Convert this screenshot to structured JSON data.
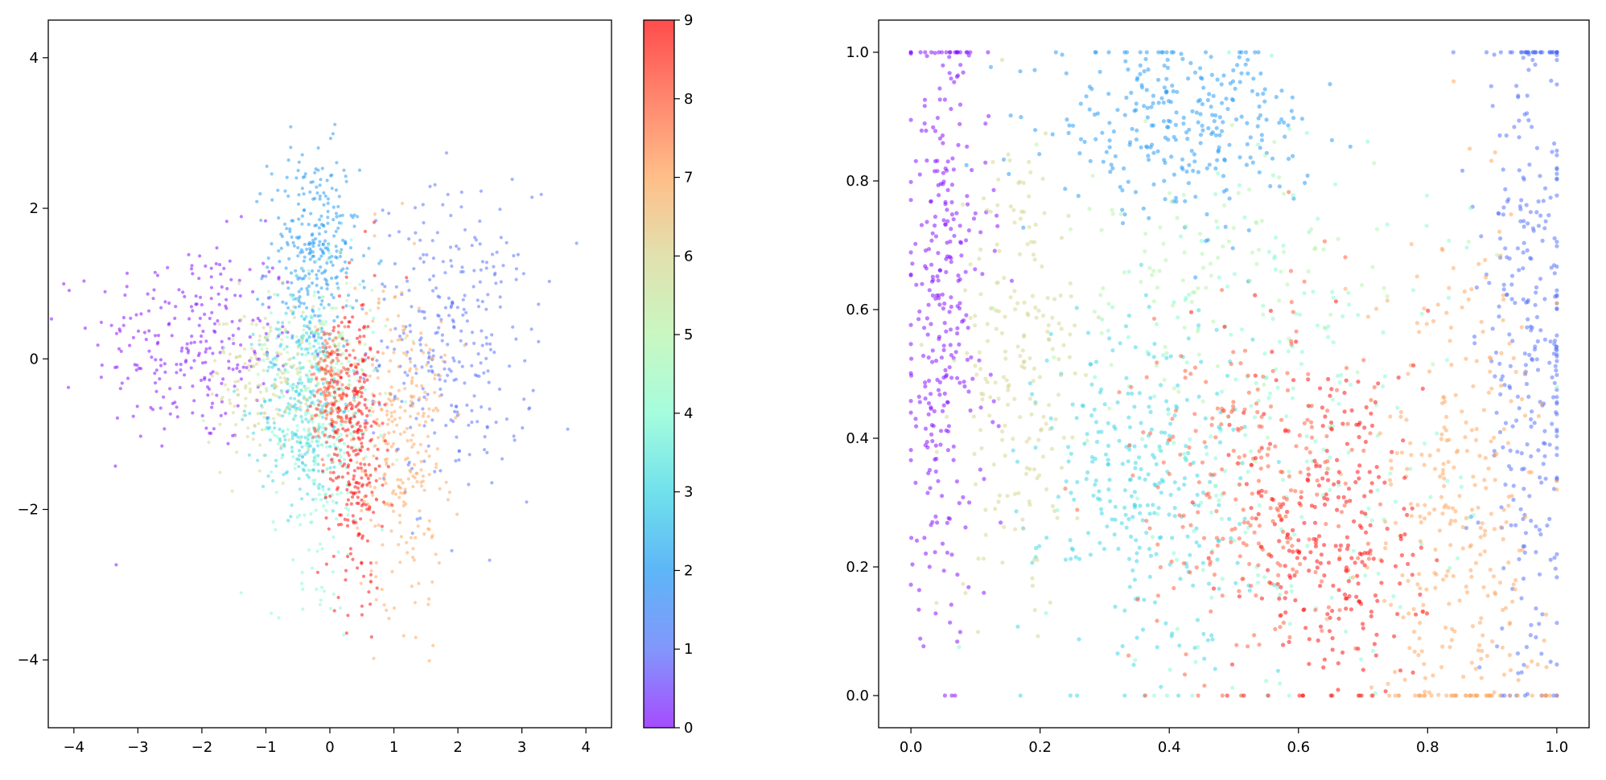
{
  "chart_data": [
    {
      "type": "scatter",
      "title": "",
      "xlabel": "",
      "ylabel": "",
      "xlim": [
        -4.4,
        4.4
      ],
      "ylim": [
        -4.9,
        4.5
      ],
      "xticks": [
        -4,
        -3,
        -2,
        -1,
        0,
        1,
        2,
        3,
        4
      ],
      "yticks": [
        -4,
        -2,
        0,
        2,
        4
      ],
      "grid": false,
      "point_alpha": 0.5,
      "color_by": "class label 0-9 (rainbow colormap)",
      "clusters": [
        {
          "label": 0,
          "color": "#8000ff",
          "center": [
            -2.1,
            0.2
          ],
          "spread": [
            0.8,
            0.7
          ],
          "n": 260
        },
        {
          "label": 1,
          "color": "#4c6afa",
          "center": [
            1.9,
            0.2
          ],
          "spread": [
            0.65,
            1.0
          ],
          "n": 300
        },
        {
          "label": 2,
          "color": "#1996f3",
          "center": [
            -0.25,
            1.4
          ],
          "spread": [
            0.35,
            0.7
          ],
          "n": 300
        },
        {
          "label": 3,
          "color": "#33d4e3",
          "center": [
            -0.4,
            -0.6
          ],
          "spread": [
            0.35,
            0.7
          ],
          "n": 300
        },
        {
          "label": 4,
          "color": "#7ffccf",
          "center": [
            -0.1,
            -1.0
          ],
          "spread": [
            0.4,
            1.0
          ],
          "n": 230
        },
        {
          "label": 5,
          "color": "#b2f3a6",
          "center": [
            -0.2,
            0.1
          ],
          "spread": [
            0.6,
            0.5
          ],
          "n": 120
        },
        {
          "label": 6,
          "color": "#d4d48c",
          "center": [
            -1.0,
            -0.3
          ],
          "spread": [
            0.45,
            0.55
          ],
          "n": 150
        },
        {
          "label": 7,
          "color": "#ffa256",
          "center": [
            1.1,
            -1.1
          ],
          "spread": [
            0.35,
            1.1
          ],
          "n": 280
        },
        {
          "label": 8,
          "color": "#ff5330",
          "center": [
            0.0,
            -0.35
          ],
          "spread": [
            0.15,
            0.4
          ],
          "n": 160
        },
        {
          "label": 9,
          "color": "#ff0000",
          "center": [
            0.4,
            -1.1
          ],
          "spread": [
            0.22,
            1.0
          ],
          "n": 290
        }
      ],
      "colorbar": {
        "min": 0,
        "max": 9,
        "ticks": [
          0,
          1,
          2,
          3,
          4,
          5,
          6,
          7,
          8,
          9
        ],
        "colormap": "rainbow",
        "stops": [
          "#8000ff",
          "#4c6afa",
          "#1996f3",
          "#33d4e3",
          "#7ffccf",
          "#b2f3a6",
          "#d4d48c",
          "#ffa256",
          "#ff5330",
          "#ff0000"
        ]
      }
    },
    {
      "type": "scatter",
      "title": "",
      "xlabel": "",
      "ylabel": "",
      "xlim": [
        -0.05,
        1.05
      ],
      "ylim": [
        -0.05,
        1.05
      ],
      "xticks": [
        "0.0",
        "0.2",
        "0.4",
        "0.6",
        "0.8",
        "1.0"
      ],
      "yticks": [
        "0.0",
        "0.2",
        "0.4",
        "0.6",
        "0.8",
        "1.0"
      ],
      "grid": false,
      "point_alpha": 0.5,
      "color_by": "class label 0-9 (rainbow colormap)",
      "clusters": [
        {
          "label": 0,
          "color": "#8000ff",
          "center": [
            0.05,
            0.6
          ],
          "spread": [
            0.035,
            0.25
          ],
          "n": 320
        },
        {
          "label": 1,
          "color": "#4c6afa",
          "center": [
            0.96,
            0.55
          ],
          "spread": [
            0.04,
            0.28
          ],
          "n": 330
        },
        {
          "label": 2,
          "color": "#1996f3",
          "center": [
            0.42,
            0.89
          ],
          "spread": [
            0.1,
            0.07
          ],
          "n": 300
        },
        {
          "label": 3,
          "color": "#33d4e3",
          "center": [
            0.36,
            0.33
          ],
          "spread": [
            0.08,
            0.14
          ],
          "n": 300
        },
        {
          "label": 4,
          "color": "#7ffccf",
          "center": [
            0.58,
            0.4
          ],
          "spread": [
            0.14,
            0.22
          ],
          "n": 230
        },
        {
          "label": 5,
          "color": "#b2f3a6",
          "center": [
            0.45,
            0.65
          ],
          "spread": [
            0.14,
            0.1
          ],
          "n": 110
        },
        {
          "label": 6,
          "color": "#d4d48c",
          "center": [
            0.17,
            0.5
          ],
          "spread": [
            0.05,
            0.18
          ],
          "n": 200
        },
        {
          "label": 7,
          "color": "#ffa256",
          "center": [
            0.85,
            0.28
          ],
          "spread": [
            0.07,
            0.22
          ],
          "n": 330
        },
        {
          "label": 8,
          "color": "#ff5330",
          "center": [
            0.52,
            0.32
          ],
          "spread": [
            0.09,
            0.14
          ],
          "n": 260
        },
        {
          "label": 9,
          "color": "#ff0000",
          "center": [
            0.66,
            0.25
          ],
          "spread": [
            0.07,
            0.16
          ],
          "n": 270
        }
      ]
    }
  ]
}
